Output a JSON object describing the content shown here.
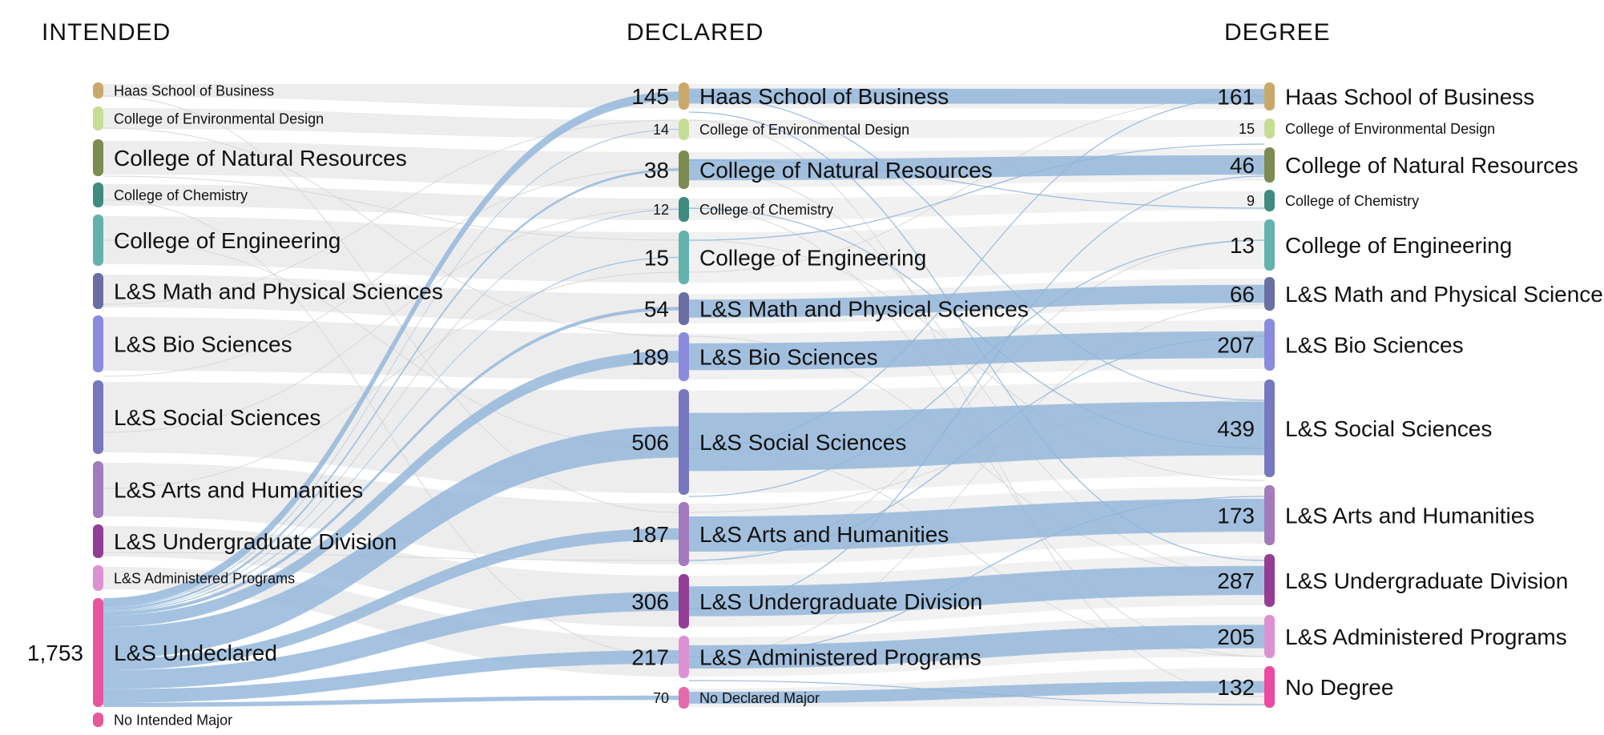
{
  "columns": [
    "INTENDED",
    "DECLARED",
    "DEGREE"
  ],
  "node_colors": {
    "Haas School of Business": "#c9a96a",
    "College of Environmental Design": "#c7dd95",
    "College of Natural Resources": "#7d8a52",
    "College of Chemistry": "#3f8b80",
    "College of Engineering": "#63b2ac",
    "L&S Math and Physical Sciences": "#6b6ea3",
    "L&S Bio Sciences": "#8a8bdd",
    "L&S Social Sciences": "#7777bd",
    "L&S Arts and Humanities": "#a27bbd",
    "L&S Undergraduate Division": "#933e95",
    "L&S Administered Programs": "#dc92d2",
    "L&S Undeclared": "#e6569e",
    "No Intended Major": "#e8589d",
    "No Declared Major": "#e36aab",
    "No Degree": "#ea4aa0"
  },
  "link_colors": {
    "highlight": "#8fb4d9",
    "background": "#e6e6e6"
  },
  "intended_nodes": [
    {
      "name": "Haas School of Business",
      "value": ""
    },
    {
      "name": "College of Environmental Design",
      "value": ""
    },
    {
      "name": "College of Natural Resources",
      "value": ""
    },
    {
      "name": "College of Chemistry",
      "value": ""
    },
    {
      "name": "College of Engineering",
      "value": ""
    },
    {
      "name": "L&S Math and Physical Sciences",
      "value": ""
    },
    {
      "name": "L&S Bio Sciences",
      "value": ""
    },
    {
      "name": "L&S Social Sciences",
      "value": ""
    },
    {
      "name": "L&S Arts and Humanities",
      "value": ""
    },
    {
      "name": "L&S Undergraduate Division",
      "value": ""
    },
    {
      "name": "L&S Administered Programs",
      "value": ""
    },
    {
      "name": "L&S Undeclared",
      "value": "1,753"
    },
    {
      "name": "No Intended Major",
      "value": ""
    }
  ],
  "declared_nodes": [
    {
      "name": "Haas School of Business",
      "value": "145"
    },
    {
      "name": "College of Environmental Design",
      "value": "14"
    },
    {
      "name": "College of Natural Resources",
      "value": "38"
    },
    {
      "name": "College of Chemistry",
      "value": "12"
    },
    {
      "name": "College of Engineering",
      "value": "15"
    },
    {
      "name": "L&S Math and Physical Sciences",
      "value": "54"
    },
    {
      "name": "L&S Bio Sciences",
      "value": "189"
    },
    {
      "name": "L&S Social Sciences",
      "value": "506"
    },
    {
      "name": "L&S Arts and Humanities",
      "value": "187"
    },
    {
      "name": "L&S Undergraduate Division",
      "value": "306"
    },
    {
      "name": "L&S Administered Programs",
      "value": "217"
    },
    {
      "name": "No Declared Major",
      "value": "70"
    }
  ],
  "degree_nodes": [
    {
      "name": "Haas School of Business",
      "value": "161"
    },
    {
      "name": "College of Environmental Design",
      "value": "15"
    },
    {
      "name": "College of Natural Resources",
      "value": "46"
    },
    {
      "name": "College of Chemistry",
      "value": "9"
    },
    {
      "name": "College of Engineering",
      "value": "13"
    },
    {
      "name": "L&S Math and Physical Sciences",
      "value": "66"
    },
    {
      "name": "L&S Bio Sciences",
      "value": "207"
    },
    {
      "name": "L&S Social Sciences",
      "value": "439"
    },
    {
      "name": "L&S Arts and Humanities",
      "value": "173"
    },
    {
      "name": "L&S Undergraduate Division",
      "value": "287"
    },
    {
      "name": "L&S Administered Programs",
      "value": "205"
    },
    {
      "name": "No Degree",
      "value": "132"
    }
  ],
  "highlighted_flows_from_undeclared": [
    {
      "to": "Haas School of Business",
      "value": 145
    },
    {
      "to": "College of Environmental Design",
      "value": 14
    },
    {
      "to": "College of Natural Resources",
      "value": 38
    },
    {
      "to": "College of Chemistry",
      "value": 12
    },
    {
      "to": "College of Engineering",
      "value": 15
    },
    {
      "to": "L&S Math and Physical Sciences",
      "value": 54
    },
    {
      "to": "L&S Bio Sciences",
      "value": 189
    },
    {
      "to": "L&S Social Sciences",
      "value": 506
    },
    {
      "to": "L&S Arts and Humanities",
      "value": 187
    },
    {
      "to": "L&S Undergraduate Division",
      "value": 306
    },
    {
      "to": "L&S Administered Programs",
      "value": 217
    },
    {
      "to": "No Declared Major",
      "value": 70
    }
  ],
  "highlighted_flows_to_degree": [
    {
      "from": "Haas School of Business",
      "to": "Haas School of Business",
      "value": 145
    },
    {
      "from": "College of Natural Resources",
      "to": "College of Natural Resources",
      "value": 38
    },
    {
      "from": "L&S Math and Physical Sciences",
      "to": "L&S Math and Physical Sciences",
      "value": 54
    },
    {
      "from": "L&S Bio Sciences",
      "to": "L&S Bio Sciences",
      "value": 189
    },
    {
      "from": "L&S Social Sciences",
      "to": "L&S Social Sciences",
      "value": 439
    },
    {
      "from": "L&S Arts and Humanities",
      "to": "L&S Arts and Humanities",
      "value": 173
    },
    {
      "from": "L&S Undergraduate Division",
      "to": "L&S Undergraduate Division",
      "value": 287
    },
    {
      "from": "L&S Administered Programs",
      "to": "L&S Administered Programs",
      "value": 205
    },
    {
      "from": "No Declared Major",
      "to": "No Degree",
      "value": 70
    }
  ]
}
